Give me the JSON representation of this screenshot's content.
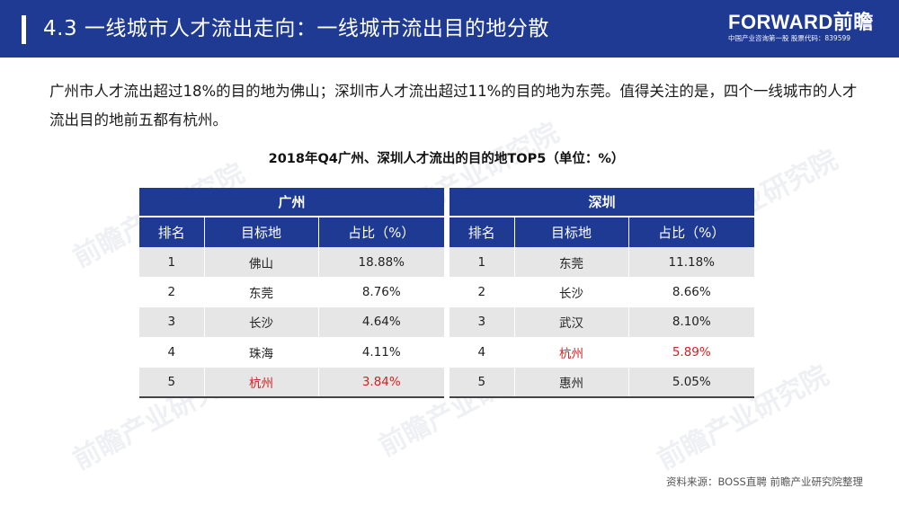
{
  "header": {
    "title": "4.3 一线城市人才流出走向：一线城市流出目的地分散",
    "logo_main": "FORWARD前瞻",
    "logo_sub": "中国产业咨询第一股  股票代码：839599",
    "background_color": "#1f3a93"
  },
  "intro": {
    "text": "广州市人才流出超过18%的目的地为佛山；深圳市人才流出超过11%的目的地为东莞。值得关注的是，四个一线城市的人才流出目的地前五都有杭州。"
  },
  "table_title": "2018年Q4广州、深圳人才流出的目的地TOP5（单位：%）",
  "columns": [
    "排名",
    "目标地",
    "占比（%）"
  ],
  "tables": [
    {
      "city": "广州",
      "rows": [
        {
          "rank": "1",
          "dest": "佛山",
          "pct": "18.88%"
        },
        {
          "rank": "2",
          "dest": "东莞",
          "pct": "8.76%"
        },
        {
          "rank": "3",
          "dest": "长沙",
          "pct": "4.64%"
        },
        {
          "rank": "4",
          "dest": "珠海",
          "pct": "4.11%"
        },
        {
          "rank": "5",
          "dest": "杭州",
          "pct": "3.84%",
          "highlight": true
        }
      ]
    },
    {
      "city": "深圳",
      "rows": [
        {
          "rank": "1",
          "dest": "东莞",
          "pct": "11.18%"
        },
        {
          "rank": "2",
          "dest": "长沙",
          "pct": "8.66%"
        },
        {
          "rank": "3",
          "dest": "武汉",
          "pct": "8.10%"
        },
        {
          "rank": "4",
          "dest": "杭州",
          "pct": "5.89%",
          "highlight": true
        },
        {
          "rank": "5",
          "dest": "惠州",
          "pct": "5.05%"
        }
      ]
    }
  ],
  "highlight_color": "#d52020",
  "watermark": "前瞻产业研究院",
  "source": "资料来源：BOSS直聘 前瞻产业研究院整理"
}
